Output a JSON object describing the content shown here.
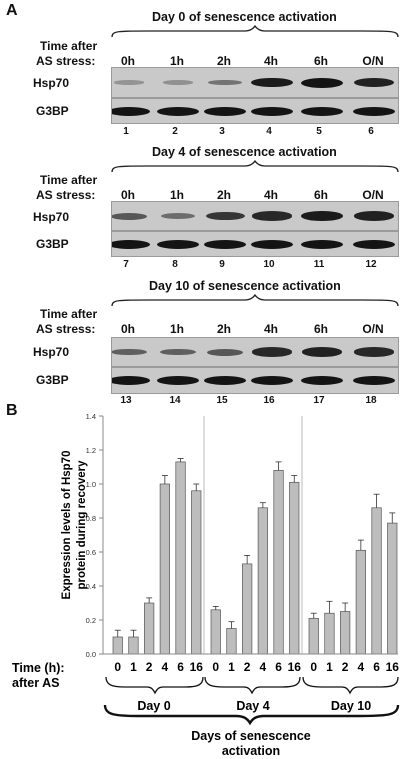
{
  "panel_a": {
    "letter": "A",
    "time_label_1": "Time after",
    "time_label_2": "AS stress:",
    "timepoints": [
      "0h",
      "1h",
      "2h",
      "4h",
      "6h",
      "O/N"
    ],
    "protein_top": "Hsp70",
    "protein_bottom": "G3BP",
    "blocks": [
      {
        "title": "Day 0 of senescence activation",
        "lanes": [
          "1",
          "2",
          "3",
          "4",
          "5",
          "6"
        ],
        "hsp70_levels": [
          0.05,
          0.08,
          0.3,
          0.95,
          1.0,
          0.9
        ]
      },
      {
        "title": "Day 4 of senescence activation",
        "lanes": [
          "7",
          "8",
          "9",
          "10",
          "11",
          "12"
        ],
        "hsp70_levels": [
          0.5,
          0.35,
          0.75,
          0.85,
          0.95,
          0.9
        ]
      },
      {
        "title": "Day 10 of senescence activation",
        "lanes": [
          "13",
          "14",
          "15",
          "16",
          "17",
          "18"
        ],
        "hsp70_levels": [
          0.45,
          0.45,
          0.5,
          0.85,
          0.9,
          0.85
        ]
      }
    ]
  },
  "panel_b": {
    "letter": "B",
    "ylabel_line1": "Expression levels of Hsp70",
    "ylabel_line2": "protein during recovery",
    "yticks": [
      "0.0",
      "0.2",
      "0.4",
      "0.6",
      "0.8",
      "1.0",
      "1.2",
      "1.4"
    ],
    "time_label_1": "Time (h):",
    "time_label_2": "after AS",
    "group_labels": [
      "Day 0",
      "Day 4",
      "Day 10"
    ],
    "footer_line1": "Days of senescence",
    "footer_line2": "activation"
  },
  "chart_data": {
    "type": "bar",
    "ylim": [
      0,
      1.4
    ],
    "grid": false,
    "categories": [
      "0",
      "1",
      "2",
      "4",
      "6",
      "16"
    ],
    "groups": [
      {
        "name": "Day 0",
        "values": [
          0.1,
          0.1,
          0.3,
          1.0,
          1.13,
          0.96
        ],
        "errors": [
          0.04,
          0.04,
          0.03,
          0.05,
          0.02,
          0.04
        ]
      },
      {
        "name": "Day 4",
        "values": [
          0.26,
          0.15,
          0.53,
          0.86,
          1.08,
          1.01
        ],
        "errors": [
          0.02,
          0.04,
          0.05,
          0.03,
          0.05,
          0.04
        ]
      },
      {
        "name": "Day 10",
        "values": [
          0.21,
          0.24,
          0.25,
          0.61,
          0.86,
          0.77
        ],
        "errors": [
          0.03,
          0.07,
          0.05,
          0.06,
          0.08,
          0.06
        ]
      }
    ]
  }
}
